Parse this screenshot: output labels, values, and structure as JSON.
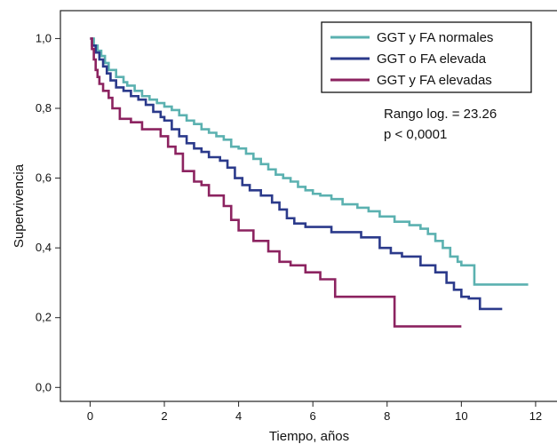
{
  "chart_data": {
    "type": "line",
    "xlabel": "Tiempo, años",
    "ylabel": "Supervivencia",
    "xlim": [
      -0.8,
      12.6
    ],
    "ylim": [
      -0.04,
      1.08
    ],
    "x_ticks": [
      0,
      2,
      4,
      6,
      8,
      10,
      12
    ],
    "x_tick_labels": [
      "0",
      "2",
      "4",
      "6",
      "8",
      "10",
      "12"
    ],
    "y_ticks": [
      0.0,
      0.2,
      0.4,
      0.6,
      0.8,
      1.0
    ],
    "y_tick_labels": [
      "0,0",
      "0,2",
      "0,4",
      "0,6",
      "0,8",
      "1,0"
    ],
    "grid": false,
    "legend_position": "top-right",
    "series": [
      {
        "name": "GGT y FA normales",
        "color": "#5bb1b0",
        "points": [
          [
            0,
            1.0
          ],
          [
            0.1,
            0.98
          ],
          [
            0.2,
            0.965
          ],
          [
            0.3,
            0.95
          ],
          [
            0.4,
            0.93
          ],
          [
            0.5,
            0.91
          ],
          [
            0.7,
            0.89
          ],
          [
            0.9,
            0.875
          ],
          [
            1.0,
            0.865
          ],
          [
            1.2,
            0.85
          ],
          [
            1.4,
            0.835
          ],
          [
            1.6,
            0.825
          ],
          [
            1.8,
            0.815
          ],
          [
            2.0,
            0.805
          ],
          [
            2.2,
            0.795
          ],
          [
            2.4,
            0.78
          ],
          [
            2.6,
            0.765
          ],
          [
            2.8,
            0.755
          ],
          [
            3.0,
            0.74
          ],
          [
            3.2,
            0.73
          ],
          [
            3.4,
            0.72
          ],
          [
            3.6,
            0.71
          ],
          [
            3.8,
            0.69
          ],
          [
            4.0,
            0.685
          ],
          [
            4.2,
            0.67
          ],
          [
            4.4,
            0.655
          ],
          [
            4.6,
            0.64
          ],
          [
            4.8,
            0.625
          ],
          [
            5.0,
            0.61
          ],
          [
            5.2,
            0.6
          ],
          [
            5.4,
            0.59
          ],
          [
            5.6,
            0.575
          ],
          [
            5.8,
            0.565
          ],
          [
            6.0,
            0.555
          ],
          [
            6.2,
            0.55
          ],
          [
            6.5,
            0.54
          ],
          [
            6.8,
            0.525
          ],
          [
            7.2,
            0.515
          ],
          [
            7.5,
            0.505
          ],
          [
            7.8,
            0.49
          ],
          [
            8.2,
            0.475
          ],
          [
            8.6,
            0.465
          ],
          [
            8.9,
            0.455
          ],
          [
            9.1,
            0.44
          ],
          [
            9.3,
            0.42
          ],
          [
            9.5,
            0.4
          ],
          [
            9.7,
            0.375
          ],
          [
            9.9,
            0.36
          ],
          [
            10.0,
            0.35
          ],
          [
            10.3,
            0.35
          ],
          [
            10.35,
            0.295
          ],
          [
            11.8,
            0.295
          ]
        ]
      },
      {
        "name": "GGT o FA elevada",
        "color": "#2b3a8b",
        "points": [
          [
            0,
            1.0
          ],
          [
            0.05,
            0.98
          ],
          [
            0.15,
            0.96
          ],
          [
            0.25,
            0.94
          ],
          [
            0.35,
            0.92
          ],
          [
            0.45,
            0.9
          ],
          [
            0.55,
            0.88
          ],
          [
            0.7,
            0.86
          ],
          [
            0.9,
            0.85
          ],
          [
            1.1,
            0.835
          ],
          [
            1.3,
            0.825
          ],
          [
            1.5,
            0.81
          ],
          [
            1.7,
            0.79
          ],
          [
            1.9,
            0.775
          ],
          [
            2.0,
            0.765
          ],
          [
            2.2,
            0.74
          ],
          [
            2.4,
            0.72
          ],
          [
            2.6,
            0.7
          ],
          [
            2.8,
            0.685
          ],
          [
            3.0,
            0.675
          ],
          [
            3.2,
            0.66
          ],
          [
            3.5,
            0.65
          ],
          [
            3.7,
            0.63
          ],
          [
            3.9,
            0.6
          ],
          [
            4.1,
            0.58
          ],
          [
            4.3,
            0.565
          ],
          [
            4.6,
            0.55
          ],
          [
            4.9,
            0.53
          ],
          [
            5.1,
            0.51
          ],
          [
            5.3,
            0.485
          ],
          [
            5.5,
            0.47
          ],
          [
            5.8,
            0.46
          ],
          [
            6.2,
            0.46
          ],
          [
            6.5,
            0.445
          ],
          [
            6.9,
            0.445
          ],
          [
            7.3,
            0.43
          ],
          [
            7.6,
            0.43
          ],
          [
            7.8,
            0.4
          ],
          [
            8.1,
            0.385
          ],
          [
            8.4,
            0.375
          ],
          [
            8.7,
            0.375
          ],
          [
            8.9,
            0.35
          ],
          [
            9.3,
            0.33
          ],
          [
            9.6,
            0.3
          ],
          [
            9.8,
            0.28
          ],
          [
            10.0,
            0.26
          ],
          [
            10.2,
            0.255
          ],
          [
            10.4,
            0.255
          ],
          [
            10.5,
            0.225
          ],
          [
            11.1,
            0.225
          ]
        ]
      },
      {
        "name": "GGT y FA elevadas",
        "color": "#8c2360",
        "points": [
          [
            0,
            1.0
          ],
          [
            0.05,
            0.97
          ],
          [
            0.1,
            0.94
          ],
          [
            0.15,
            0.91
          ],
          [
            0.2,
            0.89
          ],
          [
            0.25,
            0.87
          ],
          [
            0.35,
            0.85
          ],
          [
            0.5,
            0.83
          ],
          [
            0.6,
            0.8
          ],
          [
            0.8,
            0.77
          ],
          [
            1.1,
            0.76
          ],
          [
            1.4,
            0.74
          ],
          [
            1.9,
            0.72
          ],
          [
            2.1,
            0.69
          ],
          [
            2.3,
            0.67
          ],
          [
            2.5,
            0.62
          ],
          [
            2.8,
            0.59
          ],
          [
            3.0,
            0.58
          ],
          [
            3.2,
            0.55
          ],
          [
            3.6,
            0.52
          ],
          [
            3.8,
            0.48
          ],
          [
            4.0,
            0.45
          ],
          [
            4.4,
            0.42
          ],
          [
            4.8,
            0.39
          ],
          [
            5.1,
            0.36
          ],
          [
            5.4,
            0.35
          ],
          [
            5.8,
            0.33
          ],
          [
            6.2,
            0.31
          ],
          [
            6.6,
            0.26
          ],
          [
            7.5,
            0.26
          ],
          [
            8.2,
            0.26
          ],
          [
            8.2,
            0.175
          ],
          [
            10.0,
            0.175
          ]
        ]
      }
    ],
    "annotations": [
      "Rango log. = 23.26",
      "p < 0,0001"
    ]
  }
}
